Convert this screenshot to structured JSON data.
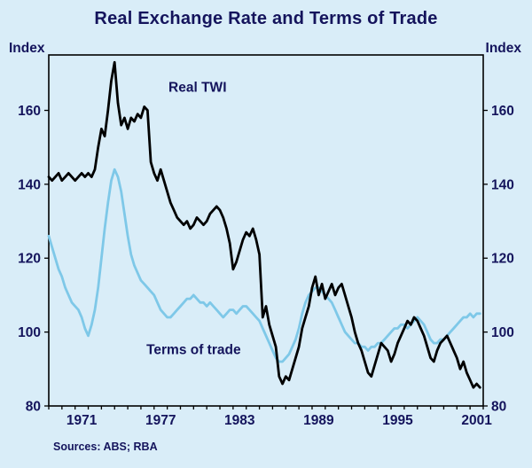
{
  "title": "Real Exchange Rate and Terms of Trade",
  "axis": {
    "left_label": "Index",
    "right_label": "Index"
  },
  "source": "Sources: ABS; RBA",
  "colors": {
    "background": "#d9edf8",
    "frame": "#000000",
    "text": "#14145c",
    "twi_line": "#000000",
    "tot_line": "#7ec8e8"
  },
  "chart_data": {
    "type": "line",
    "title": "Real Exchange Rate and Terms of Trade",
    "ylabel": "Index",
    "x_start": 1969,
    "x_step": 0.25,
    "x_range": [
      1969,
      2002
    ],
    "y_range": [
      80,
      175
    ],
    "y_ticks": [
      80,
      100,
      120,
      140,
      160
    ],
    "x_tick_labels": [
      1971,
      1977,
      1983,
      1989,
      1995,
      2001
    ],
    "grid": false,
    "legend": "in-plot-labels",
    "series": [
      {
        "name": "Real TWI",
        "color": "#000000",
        "values": [
          142,
          141,
          142,
          143,
          141,
          142,
          143,
          142,
          141,
          142,
          143,
          142,
          143,
          142,
          144,
          150,
          155,
          153,
          160,
          168,
          173,
          162,
          156,
          158,
          155,
          158,
          157,
          159,
          158,
          161,
          160,
          146,
          143,
          141,
          144,
          141,
          138,
          135,
          133,
          131,
          130,
          129,
          130,
          128,
          129,
          131,
          130,
          129,
          130,
          132,
          133,
          134,
          133,
          131,
          128,
          124,
          117,
          119,
          122,
          125,
          127,
          126,
          128,
          125,
          121,
          104,
          107,
          102,
          99,
          96,
          88,
          86,
          88,
          87,
          90,
          93,
          96,
          101,
          104,
          107,
          112,
          115,
          110,
          113,
          109,
          111,
          113,
          110,
          112,
          113,
          110,
          107,
          104,
          100,
          97,
          95,
          92,
          89,
          88,
          91,
          94,
          97,
          96,
          95,
          92,
          94,
          97,
          99,
          101,
          103,
          102,
          104,
          103,
          101,
          99,
          96,
          93,
          92,
          95,
          97,
          98,
          99,
          97,
          95,
          93,
          90,
          92,
          89,
          87,
          85,
          86,
          85
        ]
      },
      {
        "name": "Terms of trade",
        "color": "#7ec8e8",
        "values": [
          126,
          123,
          120,
          117,
          115,
          112,
          110,
          108,
          107,
          106,
          104,
          101,
          99,
          102,
          106,
          112,
          120,
          128,
          135,
          141,
          144,
          142,
          138,
          132,
          126,
          121,
          118,
          116,
          114,
          113,
          112,
          111,
          110,
          108,
          106,
          105,
          104,
          104,
          105,
          106,
          107,
          108,
          109,
          109,
          110,
          109,
          108,
          108,
          107,
          108,
          107,
          106,
          105,
          104,
          105,
          106,
          106,
          105,
          106,
          107,
          107,
          106,
          105,
          104,
          103,
          101,
          99,
          97,
          95,
          93,
          92,
          92,
          93,
          94,
          96,
          98,
          101,
          105,
          108,
          110,
          111,
          112,
          112,
          111,
          110,
          109,
          108,
          106,
          104,
          102,
          100,
          99,
          98,
          97,
          97,
          96,
          96,
          95,
          96,
          96,
          97,
          97,
          98,
          99,
          100,
          101,
          101,
          102,
          102,
          101,
          102,
          103,
          104,
          103,
          102,
          100,
          98,
          97,
          97,
          98,
          98,
          99,
          100,
          101,
          102,
          103,
          104,
          104,
          105,
          104,
          105,
          105
        ]
      }
    ],
    "annotations": [
      {
        "text": "Real TWI",
        "x": 1980.3,
        "y": 165
      },
      {
        "text": "Terms of trade",
        "x": 1980.0,
        "y": 94
      }
    ]
  }
}
